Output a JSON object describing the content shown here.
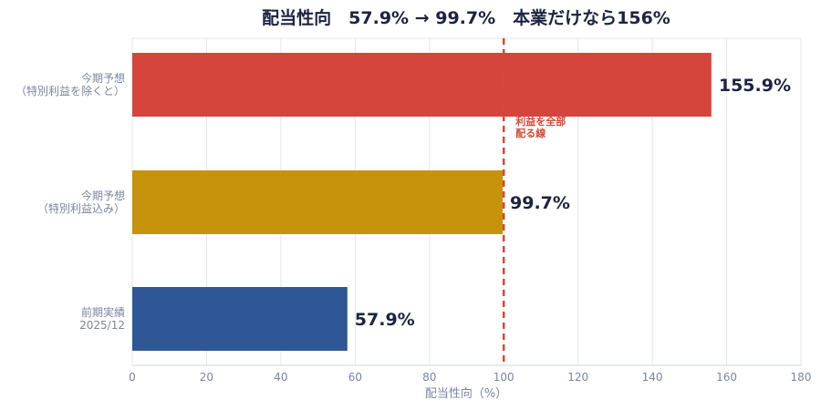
{
  "chart_data": {
    "type": "bar",
    "orientation": "horizontal",
    "title": "配当性向　57.9% → 99.7%　本業だけなら156%",
    "xlabel": "配当性向（%）",
    "ylabel": "",
    "xlim": [
      0,
      180
    ],
    "xticks": [
      0,
      20,
      40,
      60,
      80,
      100,
      120,
      140,
      160,
      180
    ],
    "grid": true,
    "legend": "none",
    "categories": [
      [
        "今期予想",
        "（特別利益を除くと）"
      ],
      [
        "今期予想",
        "（特別利益込み）"
      ],
      [
        "前期実績",
        "2025/12"
      ]
    ],
    "values": [
      155.9,
      99.7,
      57.9
    ],
    "data_labels": [
      "155.9%",
      "99.7%",
      "57.9%"
    ],
    "colors": [
      "#d5453c",
      "#c8930c",
      "#2f5795"
    ],
    "reference_line": {
      "value": 100,
      "color": "#d44a3a",
      "label": [
        "利益を全部",
        "配る線"
      ]
    }
  }
}
